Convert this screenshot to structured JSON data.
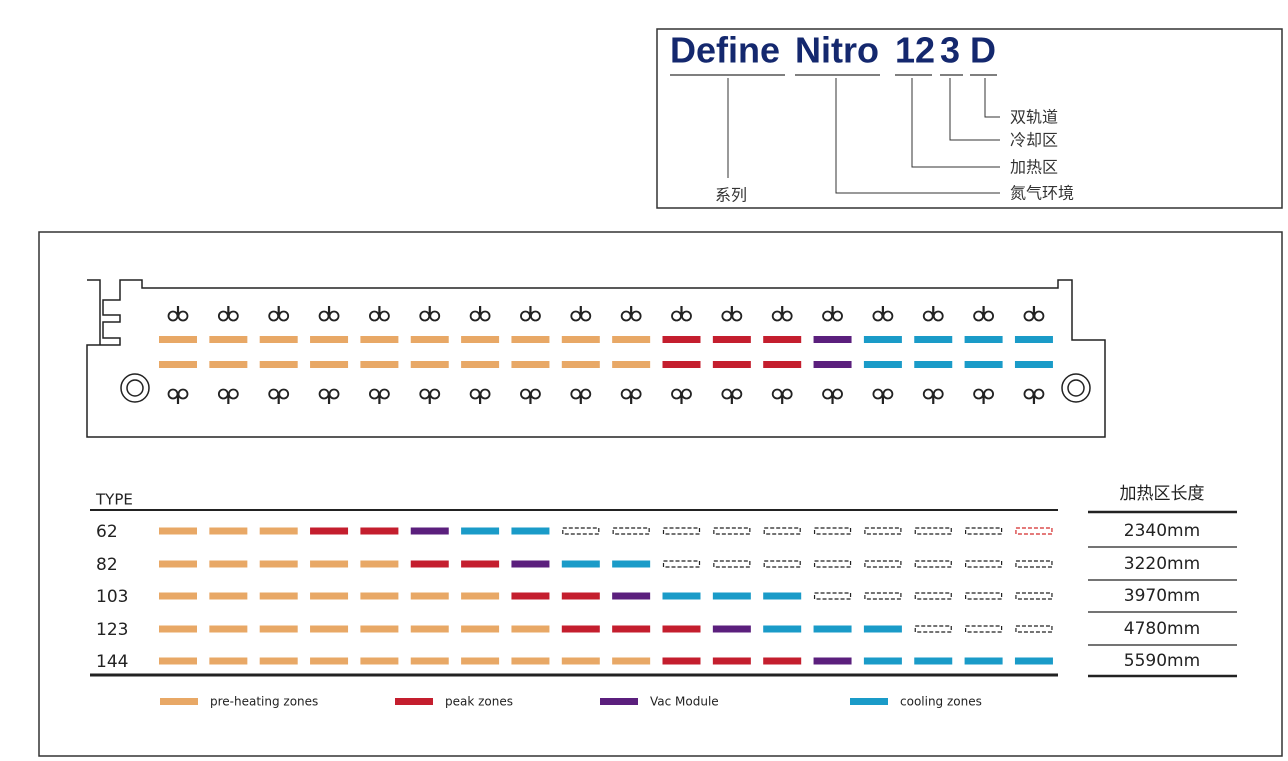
{
  "model": {
    "parts": [
      "Define",
      "Nitro",
      "12",
      "3",
      "D"
    ],
    "labels": [
      "系列",
      "氮气环境",
      "加热区",
      "冷却区",
      "双轨道"
    ]
  },
  "table": {
    "header": [
      "TYPE",
      "加热区长度"
    ],
    "rows": [
      [
        "62",
        "2340mm"
      ],
      [
        "82",
        "3220mm"
      ],
      [
        "103",
        "3970mm"
      ],
      [
        "123",
        "4780mm"
      ],
      [
        "144",
        "5590mm"
      ]
    ]
  },
  "legend": [
    "pre-heating zones",
    "peak zones",
    "Vac Module",
    "cooling zones"
  ]
}
